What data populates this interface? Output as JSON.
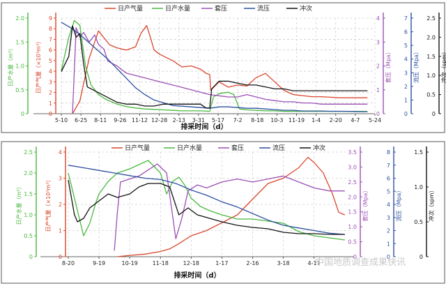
{
  "watermark": {
    "text": "中国地质调查成果快讯"
  },
  "colors": {
    "gas": "#d9452b",
    "water": "#47b83c",
    "casing": "#9b4fb5",
    "flow": "#2b4f9e",
    "stroke": "#111111",
    "frame": "#555555"
  },
  "chart_data": [
    {
      "type": "line",
      "xlabel": "排采时间（d）",
      "legend": [
        "日产气量",
        "日产水量",
        "套压",
        "流压",
        "冲次"
      ],
      "x_ticks": [
        "5-10",
        "6-25",
        "8-11",
        "9-26",
        "11-12",
        "12-28",
        "2-13",
        "3-31",
        "5-17",
        "7-2",
        "8-18",
        "10-3",
        "11-19",
        "1-4",
        "2-20",
        "4-7",
        "5-24"
      ],
      "axes": [
        {
          "label": "日产水量（m³）",
          "range": [
            0,
            2.0
          ],
          "ticks": [
            "0",
            "0.5",
            "1.0",
            "1.5",
            "2.0"
          ]
        },
        {
          "label": "日产气量（×10³m³）",
          "range": [
            0,
            9
          ],
          "ticks": [
            "0",
            "1",
            "2",
            "3",
            "4",
            "5",
            "6",
            "7",
            "8",
            "9"
          ]
        },
        {
          "label": "套压（Mpa）",
          "range": [
            0,
            4
          ],
          "ticks": [
            "0",
            "1",
            "2",
            "3",
            "4"
          ]
        },
        {
          "label": "流压（Mpa）",
          "range": [
            0,
            7
          ],
          "ticks": [
            "0",
            "1",
            "2",
            "3",
            "4",
            "5",
            "6",
            "7"
          ]
        },
        {
          "label": "冲次（spm）",
          "range": [
            0,
            2.5
          ],
          "ticks": [
            "0",
            "0.5",
            "1.0",
            "1.5",
            "2.0",
            "2.5"
          ]
        }
      ],
      "series": [
        {
          "name": "日产气量",
          "axis": 1,
          "x": [
            0.6,
            1,
            1.5,
            2,
            2.6,
            3,
            3.5,
            4,
            4.3,
            4.6,
            4.8,
            5,
            5.3,
            6,
            6.5,
            7,
            7.5,
            7.8,
            8,
            8.05,
            8.5,
            9,
            9.5,
            10,
            10.5,
            11,
            11.5,
            12,
            12.5,
            13,
            13.5,
            14,
            14.5,
            15,
            15.5,
            16,
            16.5
          ],
          "values": [
            0,
            1.2,
            5.2,
            7.8,
            6.5,
            6.2,
            6.0,
            6.3,
            7.6,
            8.3,
            7.2,
            6.0,
            5.6,
            5.0,
            4.4,
            4.5,
            4.2,
            3.8,
            3.7,
            2.2,
            3.0,
            2.5,
            2.7,
            2.6,
            3.4,
            3.8,
            3.0,
            2.2,
            1.8,
            1.7,
            1.6,
            1.6,
            1.55,
            1.5,
            1.5,
            1.5,
            1.5
          ]
        },
        {
          "name": "日产水量",
          "axis": 0,
          "x": [
            0,
            0.4,
            0.7,
            1,
            1.3,
            1.6,
            2,
            2.4,
            3,
            3.5,
            4,
            4.5,
            5,
            5.5,
            6,
            6.5,
            7,
            7.5,
            8,
            8.2,
            8.5,
            9,
            9.3,
            9.6,
            10,
            10.5,
            11,
            11.5,
            12,
            12.5,
            13,
            13.5,
            14,
            14.5,
            15,
            15.5,
            16,
            16.5
          ],
          "values": [
            0.9,
            1.6,
            1.95,
            1.85,
            1.0,
            0.6,
            0.4,
            0.3,
            0.2,
            0.15,
            0.12,
            0.1,
            0.09,
            0.08,
            0.07,
            0.06,
            0.06,
            0.06,
            0.05,
            0.35,
            0.42,
            0.45,
            0.4,
            0.1,
            0.08,
            0.07,
            0.06,
            0.06,
            0.05,
            0.05,
            0.05,
            0.05,
            0.05,
            0.05,
            0.05,
            0.05,
            0.05,
            0.05
          ]
        },
        {
          "name": "套压",
          "axis": 2,
          "x": [
            0.6,
            0.8,
            1,
            1.2,
            1.5,
            1.8,
            2,
            2.3,
            2.5,
            3,
            3.5,
            4,
            4.5,
            5,
            5.5,
            6,
            6.5,
            7,
            7.5,
            8,
            8.5,
            9,
            9.5,
            10,
            10.5,
            11,
            11.5,
            12,
            12.5,
            13,
            13.5,
            14,
            14.5,
            15,
            15.5,
            16,
            16.5
          ],
          "values": [
            0,
            3.6,
            3.2,
            3.4,
            3.0,
            3.3,
            2.9,
            2.7,
            2.2,
            2.0,
            1.7,
            1.6,
            1.5,
            1.4,
            1.3,
            1.2,
            1.1,
            1.0,
            0.9,
            0.8,
            0.75,
            0.7,
            0.7,
            0.8,
            0.7,
            0.6,
            0.55,
            0.5,
            0.5,
            0.45,
            0.45,
            0.4,
            0.4,
            0.4,
            0.4,
            0.4,
            0.4
          ]
        },
        {
          "name": "流压",
          "axis": 3,
          "x": [
            0,
            0.5,
            1,
            1.5,
            2,
            2.5,
            3,
            3.5,
            4,
            4.5,
            5,
            5.5,
            6,
            6.5,
            7,
            7.5,
            8,
            8.5,
            9,
            9.5,
            10,
            10.5,
            11,
            11.5,
            12,
            12.5,
            13,
            13.5,
            14,
            14.5,
            15,
            15.5,
            16,
            16.5
          ],
          "values": [
            6.7,
            6.3,
            5.8,
            5.2,
            4.6,
            4.0,
            3.3,
            2.6,
            1.9,
            1.4,
            1.0,
            0.8,
            0.6,
            0.55,
            0.5,
            0.45,
            0.4,
            0.5,
            0.5,
            0.45,
            0.4,
            0.4,
            0.35,
            0.3,
            0.25,
            0.25,
            0.2,
            0.2,
            0.2,
            0.18,
            0.18,
            0.17,
            0.15,
            0.15
          ]
        },
        {
          "name": "冲次",
          "axis": 4,
          "x": [
            0,
            0.2,
            0.4,
            0.6,
            0.8,
            1,
            1.2,
            1.4,
            1.8,
            2.2,
            2.6,
            3,
            3.5,
            4,
            4.5,
            5,
            5.5,
            6,
            6.5,
            7,
            7.5,
            7.8,
            8,
            8.1,
            8.5,
            9,
            9.5,
            10,
            10.5,
            11,
            11.5,
            12,
            12.5,
            13,
            13.5,
            14,
            14.5,
            15,
            15.5,
            16,
            16.5
          ],
          "values": [
            1.1,
            1.3,
            1.5,
            2.3,
            2.0,
            2.1,
            1.3,
            0.7,
            0.6,
            0.5,
            0.4,
            0.3,
            0.25,
            0.25,
            0.2,
            0.2,
            0.25,
            0.25,
            0.25,
            0.25,
            0.25,
            0.15,
            0.15,
            0.65,
            0.85,
            0.85,
            0.8,
            0.75,
            0.75,
            0.7,
            0.65,
            0.65,
            0.6,
            0.6,
            0.6,
            0.6,
            0.6,
            0.6,
            0.6,
            0.6,
            0.6
          ]
        }
      ]
    },
    {
      "type": "line",
      "xlabel": "排采时间（d）",
      "legend": [
        "日产气量",
        "日产水量",
        "套压",
        "流压",
        "冲次"
      ],
      "x_ticks": [
        "8-20",
        "9-19",
        "10-19",
        "11-18",
        "12-18",
        "1-17",
        "2-16",
        "3-18",
        "4-17"
      ],
      "axes": [
        {
          "label": "日产水量（m³）",
          "range": [
            0,
            2.5
          ],
          "ticks": [
            "0",
            "0.5",
            "1.0",
            "1.5",
            "2.0",
            "2.5"
          ]
        },
        {
          "label": "日产气量（×10³m³）",
          "range": [
            0,
            4
          ],
          "ticks": [
            "0",
            "1",
            "2",
            "3",
            "4"
          ]
        },
        {
          "label": "套压（Mpa）",
          "range": [
            0,
            3.5
          ],
          "ticks": [
            "0",
            "0.5",
            "1.0",
            "1.5",
            "2.0",
            "2.5",
            "3.0",
            "3.5"
          ]
        },
        {
          "label": "流压（Mpa）",
          "range": [
            0,
            8
          ],
          "ticks": [
            "0",
            "1",
            "2",
            "3",
            "4",
            "5",
            "6",
            "7",
            "8"
          ]
        },
        {
          "label": "冲次（spm）",
          "range": [
            0,
            1.5
          ],
          "ticks": [
            "0",
            "0.5",
            "1.0",
            "1.5"
          ]
        }
      ],
      "series": [
        {
          "name": "日产气量",
          "axis": 1,
          "x": [
            1.6,
            2,
            2.5,
            3,
            3.3,
            3.6,
            4,
            4.5,
            5,
            5.5,
            6,
            6.5,
            7,
            7.5,
            7.8,
            8,
            8.3,
            8.6,
            8.8,
            9
          ],
          "values": [
            0,
            0.05,
            0.1,
            0.2,
            0.3,
            0.5,
            0.8,
            1.0,
            1.3,
            1.6,
            2.2,
            2.8,
            3.0,
            3.4,
            3.8,
            3.6,
            3.2,
            2.4,
            1.7,
            1.6
          ]
        },
        {
          "name": "日产水量",
          "axis": 0,
          "x": [
            0,
            0.3,
            0.5,
            0.7,
            0.9,
            1,
            1.3,
            1.6,
            2,
            2.3,
            2.6,
            3,
            3.2,
            3.4,
            3.6,
            3.8,
            4,
            4.3,
            4.6,
            5,
            5.5,
            6,
            6.5,
            7,
            7.5,
            8,
            8.5,
            9
          ],
          "values": [
            2.0,
            1.1,
            0.5,
            0.8,
            1.3,
            1.5,
            1.8,
            2.0,
            2.1,
            2.2,
            2.3,
            2.0,
            1.5,
            1.8,
            1.9,
            1.7,
            1.4,
            1.2,
            1.1,
            1.0,
            0.9,
            0.9,
            0.85,
            0.8,
            0.6,
            0.5,
            0.45,
            0.4
          ]
        },
        {
          "name": "套压",
          "axis": 2,
          "x": [
            1.5,
            1.6,
            1.7,
            2,
            2.3,
            2.6,
            2.9,
            3.2,
            3.5,
            3.7,
            3.9,
            4.2,
            4.5,
            5,
            5.5,
            6,
            6.5,
            7,
            7.5,
            8,
            8.5,
            9
          ],
          "values": [
            0.2,
            1.5,
            2.5,
            2.6,
            2.7,
            2.9,
            3.1,
            2.8,
            0.6,
            1.3,
            2.2,
            2.4,
            2.3,
            2.5,
            2.6,
            2.5,
            2.6,
            2.7,
            2.5,
            2.3,
            2.2,
            2.2
          ]
        },
        {
          "name": "流压",
          "axis": 3,
          "x": [
            0,
            0.5,
            1,
            1.5,
            2,
            2.5,
            3,
            3.5,
            4,
            4.5,
            5,
            5.5,
            6,
            6.5,
            7,
            7.5,
            8,
            8.5,
            9
          ],
          "values": [
            7.0,
            6.8,
            6.6,
            6.4,
            6.2,
            6.0,
            5.9,
            5.6,
            5.1,
            4.7,
            4.2,
            3.8,
            3.3,
            2.8,
            2.4,
            2.2,
            2.0,
            1.8,
            1.7
          ]
        },
        {
          "name": "冲次",
          "axis": 4,
          "x": [
            0,
            0.2,
            0.3,
            0.5,
            0.7,
            1,
            1.3,
            1.6,
            2,
            2.3,
            2.6,
            3,
            3.3,
            3.6,
            3.9,
            4.2,
            4.6,
            5,
            5.5,
            6,
            6.5,
            7,
            7.5,
            8,
            8.5,
            9
          ],
          "values": [
            1.1,
            0.6,
            0.5,
            0.55,
            0.7,
            0.8,
            0.9,
            0.85,
            0.9,
            1.0,
            1.05,
            1.05,
            1.0,
            0.6,
            0.7,
            0.6,
            0.55,
            0.5,
            0.45,
            0.42,
            0.4,
            0.35,
            0.33,
            0.33,
            0.32,
            0.32
          ]
        }
      ]
    }
  ]
}
